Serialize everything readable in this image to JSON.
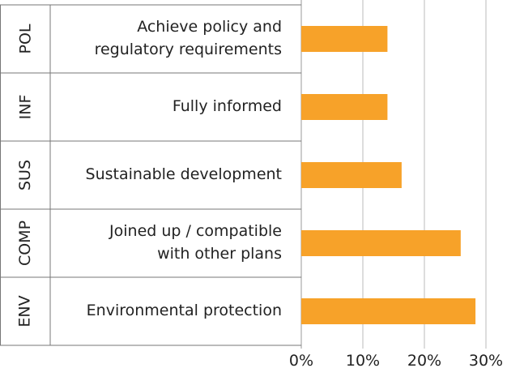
{
  "chart_data": {
    "type": "bar",
    "orientation": "horizontal",
    "groups": [
      "POL",
      "INF",
      "SUS",
      "COMP",
      "ENV"
    ],
    "categories": [
      "Achieve policy and\nregulatory requirements",
      "Fully informed",
      "Sustainable development",
      "Joined up / compatible\nwith other plans",
      "Environmental protection"
    ],
    "values": [
      14,
      14,
      16.3,
      25.9,
      28.3
    ],
    "color": "#f7a229",
    "xlim": [
      0,
      30
    ],
    "xticks": [
      {
        "value": 0,
        "label": "0%"
      },
      {
        "value": 10,
        "label": "10%"
      },
      {
        "value": 20,
        "label": "20%"
      },
      {
        "value": 30,
        "label": "30%"
      }
    ],
    "grid": true
  }
}
